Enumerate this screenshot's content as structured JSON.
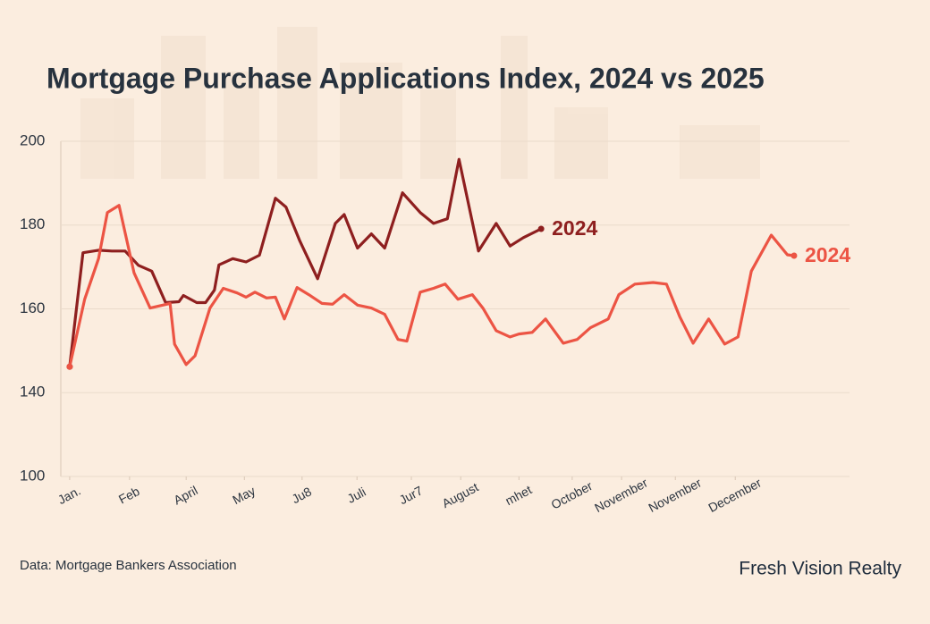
{
  "chart_data": {
    "type": "line",
    "title": "Mortgage Purchase Applications Index, 2024 vs 2025",
    "xlim": [
      -0.16,
      14.06
    ],
    "xticks": [
      {
        "value": 0,
        "label": "Jan."
      },
      {
        "value": 1.08,
        "label": "Feb"
      },
      {
        "value": 2.1,
        "label": "April"
      },
      {
        "value": 3.15,
        "label": "May"
      },
      {
        "value": 4.19,
        "label": "Ju8"
      },
      {
        "value": 5.18,
        "label": "Juli"
      },
      {
        "value": 6.16,
        "label": "Jur7"
      },
      {
        "value": 7.05,
        "label": "August"
      },
      {
        "value": 8.1,
        "label": "mhet"
      },
      {
        "value": 9.06,
        "label": "October"
      },
      {
        "value": 9.95,
        "label": "November"
      },
      {
        "value": 10.92,
        "label": "November"
      },
      {
        "value": 12.0,
        "label": "December"
      }
    ],
    "ylim": [
      100,
      200
    ],
    "yticks": [
      100,
      140,
      160,
      180,
      200
    ],
    "grid": true,
    "series": [
      {
        "name": "2024",
        "color": "#8e1f1f",
        "x": [
          0,
          0.24,
          0.52,
          0.76,
          1.0,
          1.24,
          1.48,
          1.73,
          1.97,
          2.05,
          2.29,
          2.45,
          2.61,
          2.69,
          2.94,
          3.18,
          3.42,
          3.71,
          3.9,
          4.15,
          4.47,
          4.79,
          4.95,
          5.19,
          5.44,
          5.68,
          6.0,
          6.32,
          6.56,
          6.81,
          7.02,
          7.37,
          7.69,
          7.94,
          8.18,
          8.5
        ],
        "values": [
          146.2,
          173.4,
          174,
          173.8,
          173.8,
          170.4,
          169,
          161.5,
          161.7,
          163.2,
          161.5,
          161.5,
          164.5,
          170.5,
          172,
          171.2,
          172.8,
          186.4,
          184.3,
          176.2,
          167.2,
          180.4,
          182.5,
          174.5,
          177.9,
          174.5,
          187.7,
          183,
          180.4,
          181.5,
          195.7,
          173.8,
          180.4,
          175,
          177,
          179.1
        ]
      },
      {
        "name": "2024",
        "color": "#ec5444",
        "x": [
          0,
          0.27,
          0.52,
          0.68,
          0.89,
          1.16,
          1.45,
          1.81,
          1.89,
          2.1,
          2.26,
          2.53,
          2.77,
          3.02,
          3.18,
          3.34,
          3.55,
          3.71,
          3.87,
          4.1,
          4.31,
          4.55,
          4.74,
          4.95,
          5.19,
          5.44,
          5.68,
          5.92,
          6.08,
          6.32,
          6.56,
          6.77,
          7.0,
          7.26,
          7.45,
          7.69,
          7.94,
          8.1,
          8.34,
          8.58,
          8.9,
          9.15,
          9.39,
          9.71,
          9.9,
          10.19,
          10.52,
          10.76,
          11.0,
          11.24,
          11.52,
          11.81,
          12.05,
          12.29,
          12.65,
          12.94,
          13.06
        ],
        "values": [
          146.2,
          162.3,
          172,
          183,
          184.7,
          168.6,
          160.2,
          161.3,
          151.6,
          146.7,
          148.8,
          160.2,
          164.9,
          163.8,
          162.8,
          164,
          162.6,
          162.8,
          157.6,
          165.1,
          163.4,
          161.3,
          161.1,
          163.4,
          160.9,
          160.2,
          158.7,
          152.7,
          152.3,
          164,
          164.9,
          165.9,
          162.3,
          163.4,
          160.2,
          154.8,
          153.3,
          154,
          154.4,
          157.6,
          151.8,
          152.7,
          155.5,
          157.6,
          163.4,
          165.9,
          166.3,
          165.9,
          158.1,
          151.8,
          157.6,
          151.6,
          153.3,
          169,
          177.6,
          172.9,
          172.7
        ]
      }
    ],
    "source": "Data: Mortgage Bankers Association",
    "brand": "Fresh Vision Realty"
  }
}
